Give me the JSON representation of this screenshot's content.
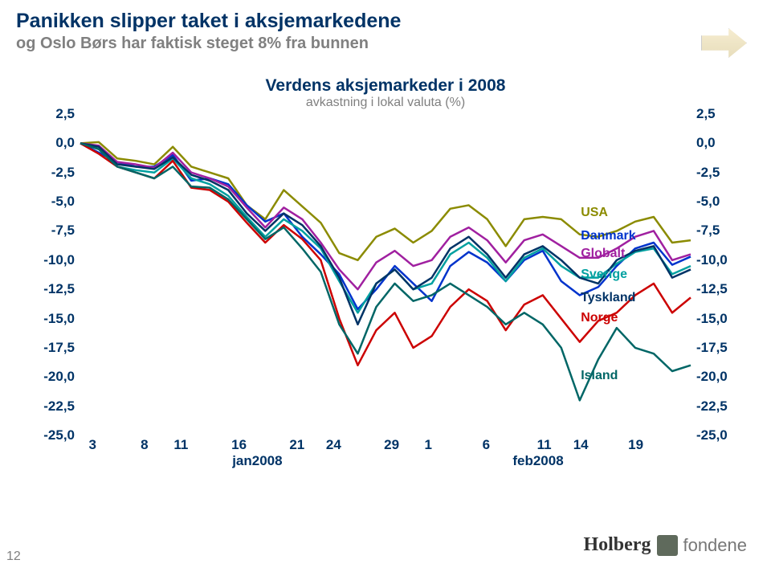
{
  "page_number": "12",
  "header": {
    "title": "Panikken slipper taket i aksjemarkedene",
    "subtitle": "og Oslo Børs har faktisk steget 8% fra bunnen"
  },
  "chart": {
    "type": "line",
    "title": "Verdens aksjemarkeder i 2008",
    "subtitle": "avkastning i lokal valuta (%)",
    "background_color": "#ffffff",
    "y_axis": {
      "min": -25.0,
      "max": 2.5,
      "ticks": [
        2.5,
        0.0,
        -2.5,
        -5.0,
        -7.5,
        -10.0,
        -12.5,
        -15.0,
        -17.5,
        -20.0,
        -22.5,
        -25.0
      ],
      "labels": [
        "2,5",
        "0,0",
        "-2,5",
        "-5,0",
        "-7,5",
        "-10,0",
        "-12,5",
        "-15,0",
        "-17,5",
        "-20,0",
        "-22,5",
        "-25,0"
      ],
      "color": "#003366",
      "fontsize": 17
    },
    "x_axis": {
      "ticks": [
        3,
        8,
        11,
        16,
        21,
        24,
        29,
        1,
        6,
        11,
        14,
        19
      ],
      "tick_positions": [
        0.02,
        0.105,
        0.165,
        0.26,
        0.355,
        0.415,
        0.51,
        0.57,
        0.665,
        0.76,
        0.82,
        0.91
      ],
      "month_labels": [
        "jan2008",
        "feb2008"
      ],
      "month_positions": [
        0.29,
        0.75
      ],
      "color": "#003366",
      "fontsize": 17
    },
    "series": [
      {
        "name": "USA",
        "color": "#8B8B00",
        "line_width": 2.5,
        "label_pos": {
          "x": 0.82,
          "y_val": -6.0
        },
        "values": [
          0,
          0.1,
          -1.3,
          -1.5,
          -1.8,
          -0.3,
          -2.0,
          -2.5,
          -3.0,
          -5.3,
          -6.5,
          -4.0,
          -5.4,
          -6.8,
          -9.4,
          -10.0,
          -8.0,
          -7.3,
          -8.5,
          -7.5,
          -5.6,
          -5.3,
          -6.5,
          -8.8,
          -6.5,
          -6.3,
          -6.5,
          -7.8,
          -8.0,
          -7.5,
          -6.7,
          -6.3,
          -8.5,
          -8.3
        ]
      },
      {
        "name": "Danmark",
        "color": "#0033CC",
        "line_width": 2.5,
        "label_pos": {
          "x": 0.82,
          "y_val": -8.0
        },
        "values": [
          0,
          -0.8,
          -1.6,
          -2.0,
          -2.0,
          -1.0,
          -3.2,
          -3.0,
          -3.5,
          -5.3,
          -6.7,
          -6.0,
          -8.0,
          -9.5,
          -11.2,
          -14.2,
          -12.5,
          -10.5,
          -12.0,
          -13.5,
          -10.5,
          -9.3,
          -10.2,
          -11.8,
          -10.0,
          -9.2,
          -11.8,
          -13.0,
          -12.3,
          -10.5,
          -9.0,
          -8.5,
          -10.4,
          -9.7
        ]
      },
      {
        "name": "Globalt",
        "color": "#A020A0",
        "line_width": 2.5,
        "label_pos": {
          "x": 0.82,
          "y_val": -9.5
        },
        "values": [
          0,
          -0.2,
          -1.6,
          -1.8,
          -2.1,
          -0.8,
          -2.5,
          -3.0,
          -3.7,
          -5.5,
          -7.2,
          -5.5,
          -6.5,
          -8.5,
          -10.8,
          -12.5,
          -10.2,
          -9.2,
          -10.5,
          -10.0,
          -8.0,
          -7.2,
          -8.3,
          -10.2,
          -8.3,
          -7.8,
          -8.8,
          -9.8,
          -9.8,
          -9.0,
          -8.0,
          -7.5,
          -10.0,
          -9.5
        ]
      },
      {
        "name": "Sverige",
        "color": "#00A0A0",
        "line_width": 2.5,
        "label_pos": {
          "x": 0.82,
          "y_val": -11.3
        },
        "values": [
          0,
          -0.5,
          -2.0,
          -2.3,
          -2.5,
          -1.3,
          -3.0,
          -3.5,
          -4.5,
          -6.3,
          -8.0,
          -6.5,
          -7.5,
          -9.0,
          -11.8,
          -14.5,
          -12.0,
          -10.8,
          -12.5,
          -12.0,
          -9.5,
          -8.5,
          -9.8,
          -11.8,
          -9.8,
          -9.0,
          -10.5,
          -11.5,
          -11.5,
          -10.3,
          -9.3,
          -9.0,
          -11.2,
          -10.5
        ]
      },
      {
        "name": "Tyskland",
        "color": "#003366",
        "line_width": 2.5,
        "label_pos": {
          "x": 0.82,
          "y_val": -13.3
        },
        "values": [
          0,
          -0.3,
          -1.8,
          -2.0,
          -2.2,
          -1.2,
          -2.7,
          -3.2,
          -4.0,
          -6.0,
          -7.5,
          -6.0,
          -7.0,
          -8.8,
          -11.5,
          -15.5,
          -12.0,
          -10.8,
          -12.5,
          -11.5,
          -9.0,
          -8.0,
          -9.5,
          -11.5,
          -9.5,
          -8.8,
          -10.0,
          -11.5,
          -12.0,
          -10.0,
          -9.2,
          -8.8,
          -11.5,
          -10.8
        ]
      },
      {
        "name": "Norge",
        "color": "#CC0000",
        "line_width": 2.5,
        "label_pos": {
          "x": 0.82,
          "y_val": -15.0
        },
        "values": [
          0,
          -0.9,
          -2.0,
          -2.5,
          -3.0,
          -1.5,
          -3.8,
          -4.0,
          -5.0,
          -6.8,
          -8.5,
          -7.0,
          -8.2,
          -10.0,
          -15.0,
          -19.0,
          -16.0,
          -14.5,
          -17.5,
          -16.5,
          -14.0,
          -12.5,
          -13.5,
          -16.0,
          -13.8,
          -13.0,
          -15.0,
          -17.0,
          -15.2,
          -14.5,
          -13.0,
          -12.0,
          -14.5,
          -13.2
        ]
      },
      {
        "name": "Island",
        "color": "#006666",
        "line_width": 2.5,
        "label_pos": {
          "x": 0.82,
          "y_val": -20.0
        },
        "values": [
          0,
          -0.5,
          -2.0,
          -2.5,
          -3.0,
          -2.0,
          -3.7,
          -3.8,
          -4.8,
          -6.5,
          -8.2,
          -7.2,
          -9.0,
          -11.0,
          -15.5,
          -18.0,
          -14.0,
          -12.0,
          -13.5,
          -13.0,
          -12.0,
          -13.0,
          -14.0,
          -15.5,
          -14.5,
          -15.5,
          -17.5,
          -22.0,
          -18.5,
          -15.8,
          -17.5,
          -18.0,
          -19.5,
          -19.0
        ]
      }
    ]
  },
  "logo": {
    "brand": "Holberg",
    "suffix": "fondene"
  }
}
